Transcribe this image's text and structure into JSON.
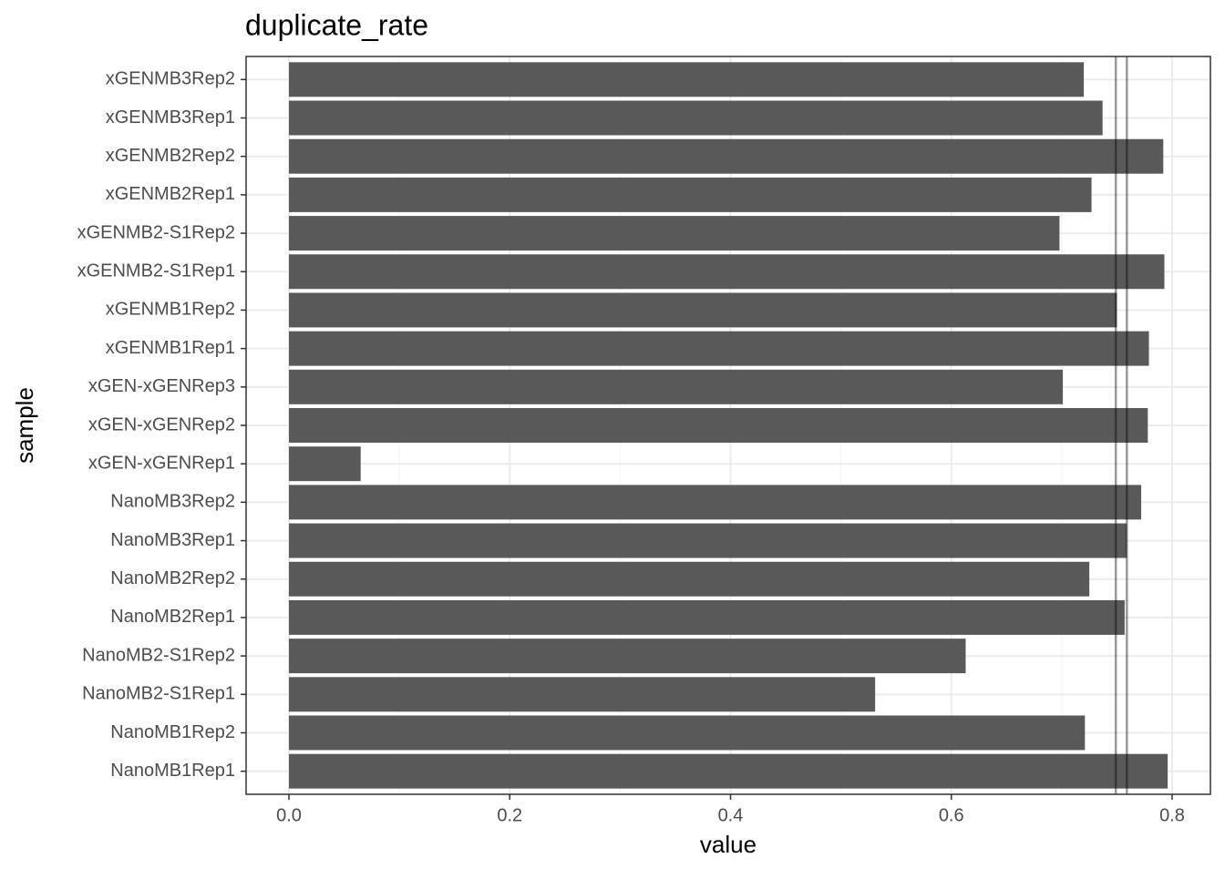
{
  "chart_data": {
    "type": "bar",
    "orientation": "horizontal",
    "title": "duplicate_rate",
    "x_label": "value",
    "y_label": "sample",
    "categories": [
      "NanoMB1Rep1",
      "NanoMB1Rep2",
      "NanoMB2-S1Rep1",
      "NanoMB2-S1Rep2",
      "NanoMB2Rep1",
      "NanoMB2Rep2",
      "NanoMB3Rep1",
      "NanoMB3Rep2",
      "xGEN-xGENRep1",
      "xGEN-xGENRep2",
      "xGEN-xGENRep3",
      "xGENMB1Rep1",
      "xGENMB1Rep2",
      "xGENMB2-S1Rep1",
      "xGENMB2-S1Rep2",
      "xGENMB2Rep1",
      "xGENMB2Rep2",
      "xGENMB3Rep1",
      "xGENMB3Rep2"
    ],
    "values": [
      0.796,
      0.721,
      0.531,
      0.613,
      0.757,
      0.725,
      0.759,
      0.772,
      0.065,
      0.778,
      0.701,
      0.779,
      0.75,
      0.793,
      0.698,
      0.727,
      0.792,
      0.737,
      0.72
    ],
    "color": "#595959",
    "reference_lines": [
      0.749,
      0.759
    ],
    "reference_color": "#000000",
    "xlim": [
      -0.0388,
      0.8347
    ],
    "xticks": [
      {
        "value": 0,
        "label": "0.0"
      },
      0.2,
      0.4,
      0.6,
      0.8
    ],
    "grid": true
  }
}
